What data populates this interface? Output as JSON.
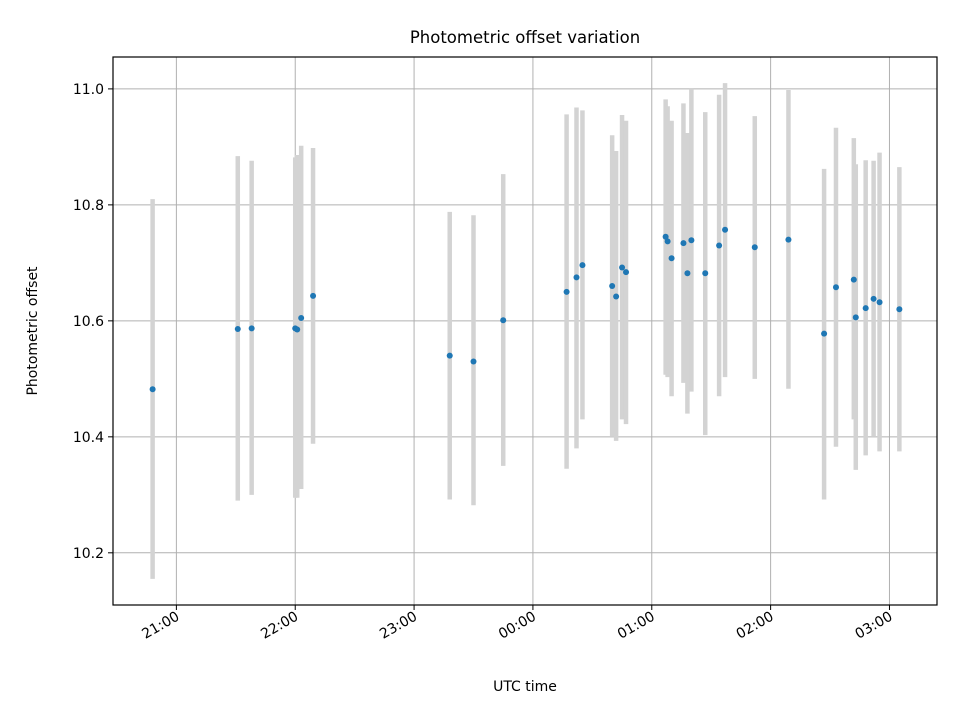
{
  "chart_data": {
    "type": "scatter",
    "title": "Photometric offset variation",
    "xlabel": "UTC time",
    "ylabel": "Photometric offset",
    "x_axis_type": "time",
    "x_range": [
      "20:28",
      "03:24"
    ],
    "ylim": [
      10.11,
      11.055
    ],
    "yticks": [
      10.2,
      10.4,
      10.6,
      10.8,
      11.0
    ],
    "ytick_labels": [
      "10.2",
      "10.4",
      "10.6",
      "10.8",
      "11.0"
    ],
    "xticks": [
      "21:00",
      "22:00",
      "23:00",
      "00:00",
      "01:00",
      "02:00",
      "03:00"
    ],
    "xtick_labels": [
      "21:00",
      "22:00",
      "23:00",
      "00:00",
      "01:00",
      "02:00",
      "03:00"
    ],
    "grid": true,
    "colors": {
      "points": "#1f77b4",
      "errorbars": "#d3d3d3",
      "grid": "#b0b0b0"
    },
    "series": [
      {
        "points": [
          {
            "x": "20:48",
            "y": 10.482,
            "ylow": 10.155,
            "yhigh": 10.81
          },
          {
            "x": "21:31",
            "y": 10.586,
            "ylow": 10.29,
            "yhigh": 10.884
          },
          {
            "x": "21:38",
            "y": 10.587,
            "ylow": 10.3,
            "yhigh": 10.876
          },
          {
            "x": "22:00",
            "y": 10.587,
            "ylow": 10.295,
            "yhigh": 10.882
          },
          {
            "x": "22:01",
            "y": 10.585,
            "ylow": 10.295,
            "yhigh": 10.886
          },
          {
            "x": "22:03",
            "y": 10.605,
            "ylow": 10.31,
            "yhigh": 10.902
          },
          {
            "x": "22:09",
            "y": 10.643,
            "ylow": 10.388,
            "yhigh": 10.898
          },
          {
            "x": "23:18",
            "y": 10.54,
            "ylow": 10.292,
            "yhigh": 10.788
          },
          {
            "x": "23:30",
            "y": 10.53,
            "ylow": 10.282,
            "yhigh": 10.782
          },
          {
            "x": "23:45",
            "y": 10.601,
            "ylow": 10.35,
            "yhigh": 10.853
          },
          {
            "x": "00:17",
            "y": 10.65,
            "ylow": 10.345,
            "yhigh": 10.956
          },
          {
            "x": "00:22",
            "y": 10.675,
            "ylow": 10.38,
            "yhigh": 10.968
          },
          {
            "x": "00:25",
            "y": 10.696,
            "ylow": 10.43,
            "yhigh": 10.963
          },
          {
            "x": "00:40",
            "y": 10.66,
            "ylow": 10.4,
            "yhigh": 10.92
          },
          {
            "x": "00:42",
            "y": 10.642,
            "ylow": 10.393,
            "yhigh": 10.893
          },
          {
            "x": "00:45",
            "y": 10.692,
            "ylow": 10.43,
            "yhigh": 10.955
          },
          {
            "x": "00:47",
            "y": 10.684,
            "ylow": 10.422,
            "yhigh": 10.945
          },
          {
            "x": "01:07",
            "y": 10.745,
            "ylow": 10.507,
            "yhigh": 10.982
          },
          {
            "x": "01:08",
            "y": 10.737,
            "ylow": 10.503,
            "yhigh": 10.97
          },
          {
            "x": "01:10",
            "y": 10.708,
            "ylow": 10.47,
            "yhigh": 10.945
          },
          {
            "x": "01:16",
            "y": 10.734,
            "ylow": 10.493,
            "yhigh": 10.975
          },
          {
            "x": "01:18",
            "y": 10.682,
            "ylow": 10.44,
            "yhigh": 10.924
          },
          {
            "x": "01:20",
            "y": 10.739,
            "ylow": 10.478,
            "yhigh": 11.0
          },
          {
            "x": "01:27",
            "y": 10.682,
            "ylow": 10.403,
            "yhigh": 10.96
          },
          {
            "x": "01:34",
            "y": 10.73,
            "ylow": 10.47,
            "yhigh": 10.99
          },
          {
            "x": "01:37",
            "y": 10.757,
            "ylow": 10.503,
            "yhigh": 11.01
          },
          {
            "x": "01:52",
            "y": 10.727,
            "ylow": 10.5,
            "yhigh": 10.953
          },
          {
            "x": "02:09",
            "y": 10.74,
            "ylow": 10.483,
            "yhigh": 10.998
          },
          {
            "x": "02:27",
            "y": 10.578,
            "ylow": 10.292,
            "yhigh": 10.862
          },
          {
            "x": "02:33",
            "y": 10.658,
            "ylow": 10.383,
            "yhigh": 10.933
          },
          {
            "x": "02:42",
            "y": 10.671,
            "ylow": 10.43,
            "yhigh": 10.915
          },
          {
            "x": "02:43",
            "y": 10.606,
            "ylow": 10.343,
            "yhigh": 10.87
          },
          {
            "x": "02:48",
            "y": 10.622,
            "ylow": 10.368,
            "yhigh": 10.877
          },
          {
            "x": "02:52",
            "y": 10.638,
            "ylow": 10.4,
            "yhigh": 10.876
          },
          {
            "x": "02:55",
            "y": 10.632,
            "ylow": 10.375,
            "yhigh": 10.89
          },
          {
            "x": "03:05",
            "y": 10.62,
            "ylow": 10.375,
            "yhigh": 10.865
          }
        ]
      }
    ]
  }
}
